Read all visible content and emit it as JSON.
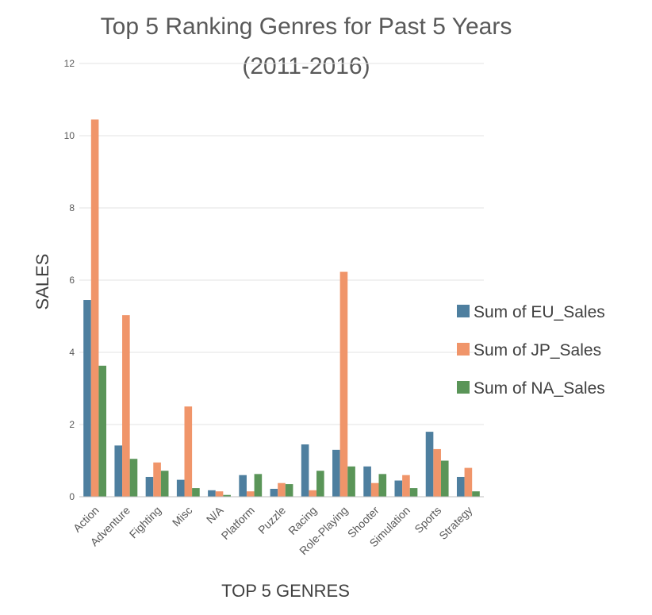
{
  "chart_data": {
    "type": "bar",
    "title_lines": [
      "Top 5 Ranking Genres for Past 5 Years",
      "(2011-2016)"
    ],
    "xlabel": "TOP 5 GENRES",
    "ylabel": "SALES",
    "categories": [
      "Action",
      "Adventure",
      "Fighting",
      "Misc",
      "N/A",
      "Platform",
      "Puzzle",
      "Racing",
      "Role-Playing",
      "Shooter",
      "Simulation",
      "Sports",
      "Strategy"
    ],
    "series": [
      {
        "name": "Sum of EU_Sales",
        "color": "#4E7F9F",
        "values": [
          5.45,
          1.42,
          0.55,
          0.47,
          0.18,
          0.6,
          0.22,
          1.45,
          1.3,
          0.84,
          0.45,
          1.8,
          0.55
        ]
      },
      {
        "name": "Sum of JP_Sales",
        "color": "#F0956A",
        "values": [
          10.45,
          5.03,
          0.95,
          2.5,
          0.15,
          0.15,
          0.38,
          0.18,
          6.23,
          0.38,
          0.6,
          1.32,
          0.8
        ]
      },
      {
        "name": "Sum of NA_Sales",
        "color": "#5A9558",
        "values": [
          3.63,
          1.05,
          0.72,
          0.24,
          0.05,
          0.63,
          0.35,
          0.72,
          0.84,
          0.63,
          0.24,
          1.0,
          0.15
        ]
      }
    ],
    "ylim": [
      0,
      12
    ],
    "yticks": [
      "0",
      "2",
      "4",
      "6",
      "8",
      "10",
      "12"
    ],
    "grid": true,
    "legend_position": "right"
  }
}
